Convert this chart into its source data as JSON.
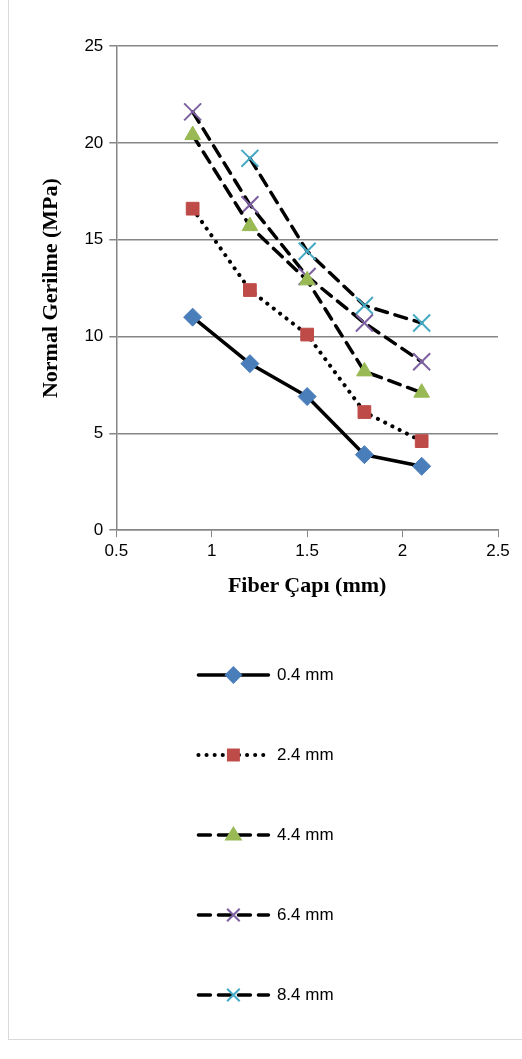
{
  "chart_data": {
    "type": "line",
    "xlabel": "Fiber Çapı (mm)",
    "ylabel": "Normal Gerilme (MPa)",
    "x": [
      0.9,
      1.2,
      1.5,
      1.8,
      2.1
    ],
    "series": [
      {
        "name": "0.4 mm",
        "color": "#4a7ebb",
        "marker": "diamond",
        "line_style": "solid",
        "values": [
          11.0,
          8.6,
          6.9,
          3.9,
          3.3
        ]
      },
      {
        "name": "2.4 mm",
        "color": "#be4b48",
        "marker": "square",
        "line_style": "dotted",
        "values": [
          16.6,
          12.4,
          10.1,
          6.1,
          4.6
        ]
      },
      {
        "name": "4.4 mm",
        "color": "#98b954",
        "marker": "triangle",
        "line_style": "dashed",
        "values": [
          20.4,
          15.7,
          12.9,
          8.2,
          7.1
        ]
      },
      {
        "name": "6.4 mm",
        "color": "#7d60a0",
        "marker": "cross",
        "line_style": "dashed",
        "values": [
          21.6,
          16.8,
          13.1,
          10.7,
          8.7
        ]
      },
      {
        "name": "8.4 mm",
        "color": "#46aac5",
        "marker": "cross",
        "line_style": "dashed",
        "values": [
          null,
          19.2,
          14.4,
          11.6,
          10.7
        ]
      }
    ],
    "xlim": [
      0.5,
      2.5
    ],
    "xticks": [
      0.5,
      1,
      1.5,
      2,
      2.5
    ],
    "ylim": [
      0,
      25
    ],
    "yticks": [
      0,
      5,
      10,
      15,
      20,
      25
    ],
    "grid": "y",
    "legend": "bottom"
  }
}
